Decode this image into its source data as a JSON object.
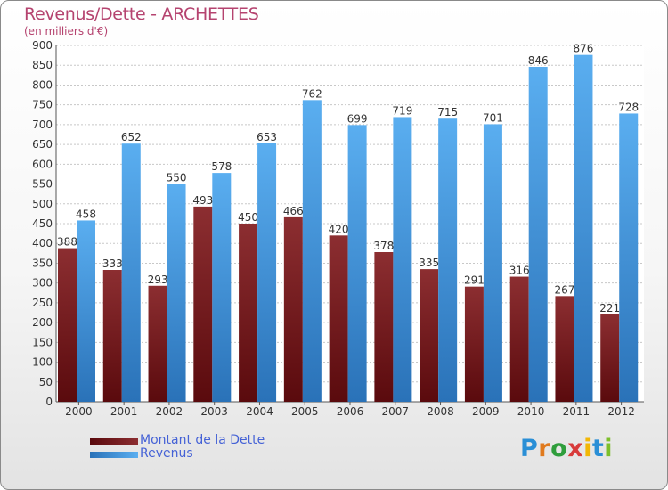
{
  "chart_data": {
    "type": "bar",
    "title": "Revenus/Dette - ARCHETTES",
    "subtitle": "(en milliers d'€)",
    "categories": [
      "2000",
      "2001",
      "2002",
      "2003",
      "2004",
      "2005",
      "2006",
      "2007",
      "2008",
      "2009",
      "2010",
      "2011",
      "2012"
    ],
    "series": [
      {
        "name": "Montant de la Dette",
        "values": [
          388,
          333,
          293,
          493,
          450,
          466,
          420,
          378,
          335,
          291,
          316,
          267,
          221
        ]
      },
      {
        "name": "Revenus",
        "values": [
          458,
          652,
          550,
          578,
          653,
          762,
          699,
          719,
          715,
          701,
          846,
          876,
          728
        ]
      }
    ],
    "ylim": [
      0,
      900
    ],
    "yticks": [
      0,
      50,
      100,
      150,
      200,
      250,
      300,
      350,
      400,
      450,
      500,
      550,
      600,
      650,
      700,
      750,
      800,
      850,
      900
    ],
    "grid": true,
    "legend_position": "bottom-left",
    "colors": {
      "dette_light": "#8c2e31",
      "dette_dark": "#5a0a0d",
      "revenus_light": "#5aaef0",
      "revenus_dark": "#2a72b8",
      "title": "#b5436f",
      "legend_text": "#4562d6"
    }
  },
  "branding": {
    "logo_letters": [
      "P",
      "r",
      "o",
      "x",
      "i",
      "t",
      "i"
    ],
    "logo_colors": [
      "#2a8fd6",
      "#e07a1e",
      "#2f9e3c",
      "#d83b3b",
      "#f2b705",
      "#2a8fd6",
      "#7cbf2b"
    ]
  }
}
